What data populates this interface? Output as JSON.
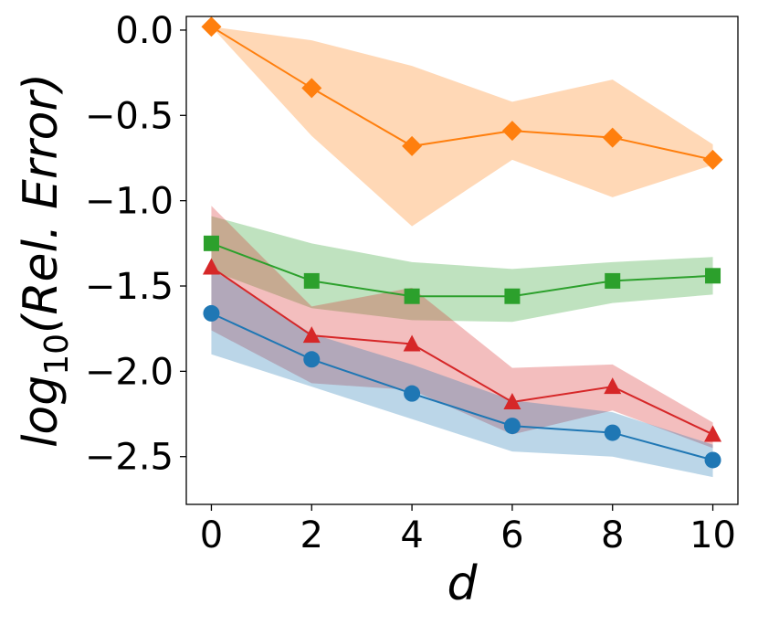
{
  "chart_data": {
    "type": "line",
    "title": "",
    "xlabel": "d",
    "ylabel": {
      "base": "log",
      "subscript": "10",
      "rest": "(Rel. Error)"
    },
    "x": [
      0,
      2,
      4,
      6,
      8,
      10
    ],
    "xlim": [
      -0.5,
      10.5
    ],
    "ylim": [
      -2.78,
      0.08
    ],
    "xticks": [
      0,
      2,
      4,
      6,
      8,
      10
    ],
    "xtick_labels": [
      "0",
      "2",
      "4",
      "6",
      "8",
      "10"
    ],
    "yticks": [
      0.0,
      -0.5,
      -1.0,
      -1.5,
      -2.0,
      -2.5
    ],
    "ytick_labels": [
      "0.0",
      "−0.5",
      "−1.0",
      "−1.5",
      "−2.0",
      "−2.5"
    ],
    "grid": false,
    "legend": "none",
    "series": [
      {
        "name": "orange",
        "color": "#ff7f0e",
        "marker": "diamond",
        "values": [
          0.02,
          -0.34,
          -0.68,
          -0.59,
          -0.63,
          -0.76
        ],
        "lower": [
          0.02,
          -0.62,
          -1.15,
          -0.76,
          -0.98,
          -0.79
        ],
        "upper": [
          0.02,
          -0.06,
          -0.21,
          -0.42,
          -0.29,
          -0.67
        ]
      },
      {
        "name": "green",
        "color": "#2ca02c",
        "marker": "square",
        "values": [
          -1.25,
          -1.47,
          -1.56,
          -1.56,
          -1.47,
          -1.44
        ],
        "lower": [
          -1.41,
          -1.63,
          -1.7,
          -1.71,
          -1.6,
          -1.55
        ],
        "upper": [
          -1.09,
          -1.25,
          -1.36,
          -1.4,
          -1.36,
          -1.33
        ]
      },
      {
        "name": "red",
        "color": "#d62728",
        "marker": "triangle",
        "values": [
          -1.39,
          -1.79,
          -1.84,
          -2.18,
          -2.09,
          -2.37
        ],
        "lower": [
          -1.76,
          -2.07,
          -2.11,
          -2.37,
          -2.23,
          -2.45
        ],
        "upper": [
          -1.03,
          -1.62,
          -1.51,
          -1.98,
          -1.96,
          -2.3
        ]
      },
      {
        "name": "blue",
        "color": "#1f77b4",
        "marker": "circle",
        "values": [
          -1.66,
          -1.93,
          -2.13,
          -2.32,
          -2.36,
          -2.52
        ],
        "lower": [
          -1.9,
          -2.09,
          -2.28,
          -2.47,
          -2.5,
          -2.62
        ],
        "upper": [
          -1.4,
          -1.78,
          -1.96,
          -2.17,
          -2.24,
          -2.43
        ]
      }
    ]
  }
}
